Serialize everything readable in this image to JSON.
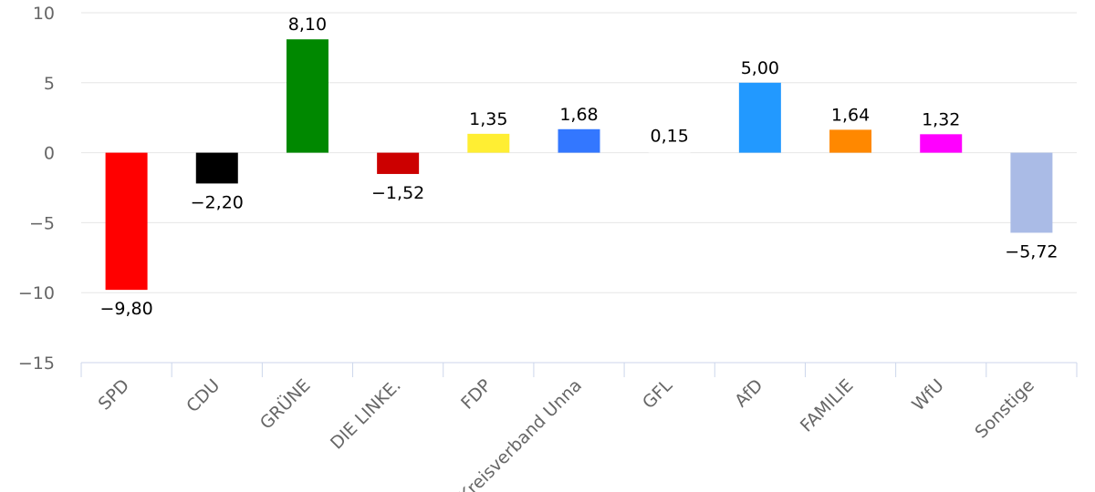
{
  "chart_data": {
    "type": "bar",
    "categories": [
      "SPD",
      "CDU",
      "GRÜNE",
      "DIE LINKE.",
      "FDP",
      "Kreisverband Unna",
      "GFL",
      "AfD",
      "FAMILIE",
      "WfU",
      "Sonstige"
    ],
    "values": [
      -9.8,
      -2.2,
      8.1,
      -1.52,
      1.35,
      1.68,
      0.15,
      5.0,
      1.64,
      1.32,
      -5.72
    ],
    "value_labels": [
      "−9,80",
      "−2,20",
      "8,10",
      "−1,52",
      "1,35",
      "1,68",
      "0,15",
      "5,00",
      "1,64",
      "1,32",
      "−5,72"
    ],
    "colors": [
      "#ff0000",
      "#000000",
      "#008800",
      "#cc0000",
      "#ffee33",
      "#3377ff",
      "#ffffff",
      "#2299ff",
      "#ff8800",
      "#ff00ff",
      "#aabbe6"
    ],
    "title": "",
    "xlabel": "",
    "ylabel": "",
    "ylim": [
      -15,
      10
    ],
    "yticks": [
      10,
      5,
      0,
      -5,
      -10,
      -15
    ],
    "ytick_labels": [
      "10",
      "5",
      "0",
      "−5",
      "−10",
      "−15"
    ],
    "grid": true,
    "legend": "none"
  }
}
